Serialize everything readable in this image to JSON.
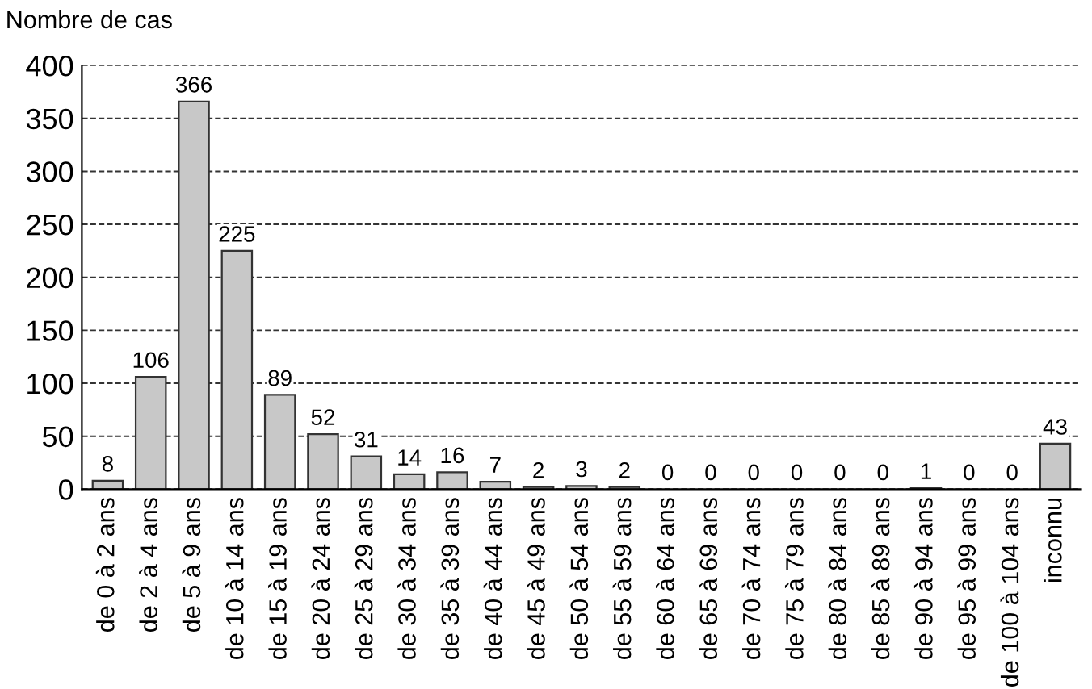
{
  "chart_data": {
    "type": "bar",
    "ylabel": "Nombre de cas",
    "categories": [
      "de 0 à 2 ans",
      "de 2 à 4 ans",
      "de 5 à 9 ans",
      "de 10 à 14 ans",
      "de 15 à 19 ans",
      "de 20 à 24 ans",
      "de 25 à 29 ans",
      "de 30 à 34 ans",
      "de 35 à 39 ans",
      "de 40 à 44 ans",
      "de 45 à 49 ans",
      "de 50 à 54 ans",
      "de 55 à 59 ans",
      "de 60 à 64 ans",
      "de 65 à 69 ans",
      "de 70 à 74 ans",
      "de 75 à 79 ans",
      "de 80 à 84 ans",
      "de 85 à 89 ans",
      "de 90 à 94 ans",
      "de 95 à 99 ans",
      "de 100 à 104 ans",
      "inconnu"
    ],
    "values": [
      8,
      106,
      366,
      225,
      89,
      52,
      31,
      14,
      16,
      7,
      2,
      3,
      2,
      0,
      0,
      0,
      0,
      0,
      0,
      1,
      0,
      0,
      43
    ],
    "color": "#c8c8c8",
    "ylim": [
      0,
      400
    ],
    "yticks": [
      0,
      50,
      100,
      150,
      200,
      250,
      300,
      350,
      400
    ],
    "grid": "y",
    "line_style": "dashed",
    "data_labels": true
  }
}
